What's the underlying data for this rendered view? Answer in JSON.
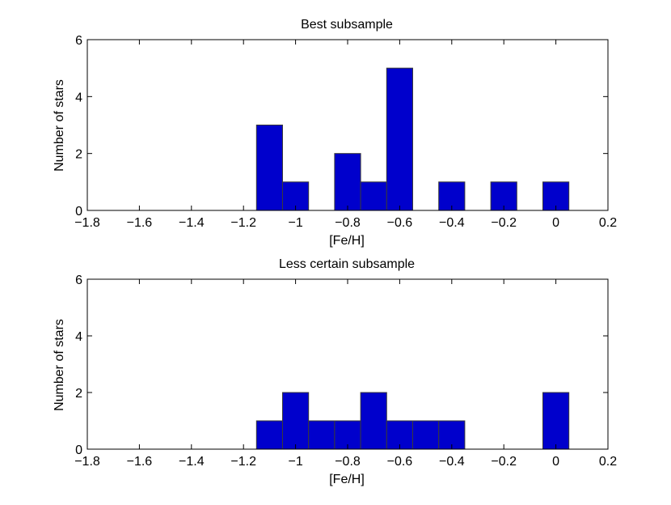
{
  "figure": {
    "background": "#ffffff",
    "bar_fill": "#0000cc",
    "bar_stroke": "#3a3a3a",
    "axis_color": "#000000"
  },
  "chart_data": [
    {
      "type": "bar",
      "title": "Best subsample",
      "xlabel": "[Fe/H]",
      "ylabel": "Number of stars",
      "xlim": [
        -1.8,
        0.2
      ],
      "ylim": [
        0,
        6
      ],
      "xticks": [
        -1.8,
        -1.6,
        -1.4,
        -1.2,
        -1.0,
        -0.8,
        -0.6,
        -0.4,
        -0.2,
        0.0,
        0.2
      ],
      "xtick_labels": [
        "−1.8",
        "−1.6",
        "−1.4",
        "−1.2",
        "−1",
        "−0.8",
        "−0.6",
        "−0.4",
        "−0.2",
        "0",
        "0.2"
      ],
      "yticks": [
        0,
        2,
        4,
        6
      ],
      "ytick_labels": [
        "0",
        "2",
        "4",
        "6"
      ],
      "bin_width": 0.1,
      "bars": [
        {
          "x": -1.1,
          "value": 3
        },
        {
          "x": -1.0,
          "value": 1
        },
        {
          "x": -0.8,
          "value": 2
        },
        {
          "x": -0.7,
          "value": 1
        },
        {
          "x": -0.6,
          "value": 5
        },
        {
          "x": -0.4,
          "value": 1
        },
        {
          "x": -0.2,
          "value": 1
        },
        {
          "x": 0.0,
          "value": 1
        }
      ]
    },
    {
      "type": "bar",
      "title": "Less certain subsample",
      "xlabel": "[Fe/H]",
      "ylabel": "Number of stars",
      "xlim": [
        -1.8,
        0.2
      ],
      "ylim": [
        0,
        6
      ],
      "xticks": [
        -1.8,
        -1.6,
        -1.4,
        -1.2,
        -1.0,
        -0.8,
        -0.6,
        -0.4,
        -0.2,
        0.0,
        0.2
      ],
      "xtick_labels": [
        "−1.8",
        "−1.6",
        "−1.4",
        "−1.2",
        "−1",
        "−0.8",
        "−0.6",
        "−0.4",
        "−0.2",
        "0",
        "0.2"
      ],
      "yticks": [
        0,
        2,
        4,
        6
      ],
      "ytick_labels": [
        "0",
        "2",
        "4",
        "6"
      ],
      "bin_width": 0.1,
      "bars": [
        {
          "x": -1.1,
          "value": 1
        },
        {
          "x": -1.0,
          "value": 2
        },
        {
          "x": -0.9,
          "value": 1
        },
        {
          "x": -0.8,
          "value": 1
        },
        {
          "x": -0.7,
          "value": 2
        },
        {
          "x": -0.6,
          "value": 1
        },
        {
          "x": -0.5,
          "value": 1
        },
        {
          "x": -0.4,
          "value": 1
        },
        {
          "x": 0.0,
          "value": 2
        }
      ]
    }
  ]
}
